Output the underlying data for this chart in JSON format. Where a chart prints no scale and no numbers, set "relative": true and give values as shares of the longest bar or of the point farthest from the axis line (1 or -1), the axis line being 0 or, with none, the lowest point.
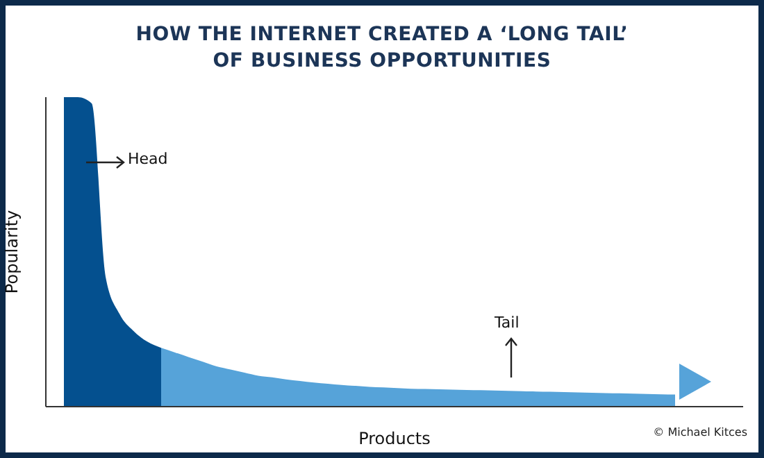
{
  "chart_data": {
    "type": "area",
    "title": "HOW THE INTERNET CREATED A ‘LONG TAIL’\nOF BUSINESS OPPORTUNITIES",
    "xlabel": "Products",
    "ylabel": "Popularity",
    "relative": true,
    "categories": [
      null,
      null,
      null,
      null,
      null,
      null,
      null,
      null,
      null,
      null,
      null,
      null,
      null,
      null,
      null,
      null,
      null,
      null,
      null,
      null,
      null,
      null,
      null,
      null,
      null,
      null,
      null,
      null,
      null,
      null,
      null,
      null,
      null,
      null,
      null,
      null,
      null,
      null,
      null,
      null,
      null,
      null,
      null,
      null,
      null
    ],
    "series": [
      {
        "color": "#04508f",
        "values": [
          1,
          1,
          0.98,
          0.42,
          0.3,
          0.245,
          0.21,
          0.19,
          null,
          null,
          null,
          null,
          null,
          null,
          null,
          null,
          null,
          null,
          null,
          null,
          null,
          null,
          null,
          null,
          null,
          null,
          null,
          null,
          null,
          null,
          null,
          null,
          null,
          null,
          null,
          null,
          null,
          null,
          null,
          null,
          null,
          null,
          null,
          null,
          null
        ]
      },
      {
        "color": "#56a3d9",
        "values": [
          null,
          null,
          null,
          null,
          null,
          null,
          null,
          0.19,
          0.175,
          0.16,
          0.145,
          0.13,
          0.12,
          0.11,
          0.1,
          0.095,
          0.088,
          0.083,
          0.078,
          0.074,
          0.07,
          0.067,
          0.064,
          0.062,
          0.06,
          0.058,
          0.057,
          0.056,
          0.055,
          0.054,
          0.053,
          0.052,
          0.051,
          0.05,
          0.049,
          0.048,
          0.047,
          0.046,
          0.045,
          0.044,
          0.043,
          0.042,
          0.041,
          0.04,
          0.039
        ]
      }
    ],
    "annotations": [
      "Head",
      "Tail",
      "© Michael Kitces"
    ]
  }
}
